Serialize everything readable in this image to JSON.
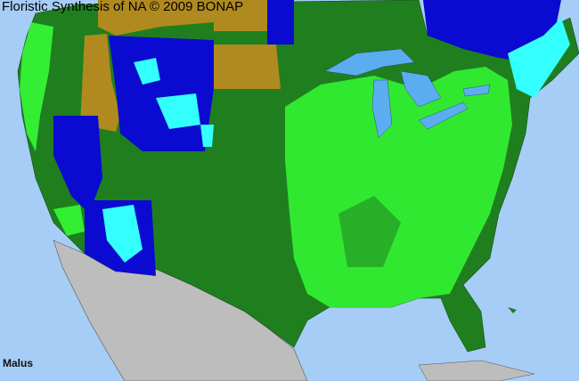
{
  "header": {
    "title": "Floristic Synthesis of NA © 2009 BONAP"
  },
  "map": {
    "taxon_label": "Malus",
    "colors": {
      "ocean": "#a6cdf5",
      "lakes": "#5aaef0",
      "present_native": "#1f7f1f",
      "county_present": "#33ee33",
      "absent_state": "#0a0ad0",
      "county_absent": "#33ffff",
      "not_in_state": "#b08a1e",
      "outside_region": "#bdbdbd"
    }
  }
}
